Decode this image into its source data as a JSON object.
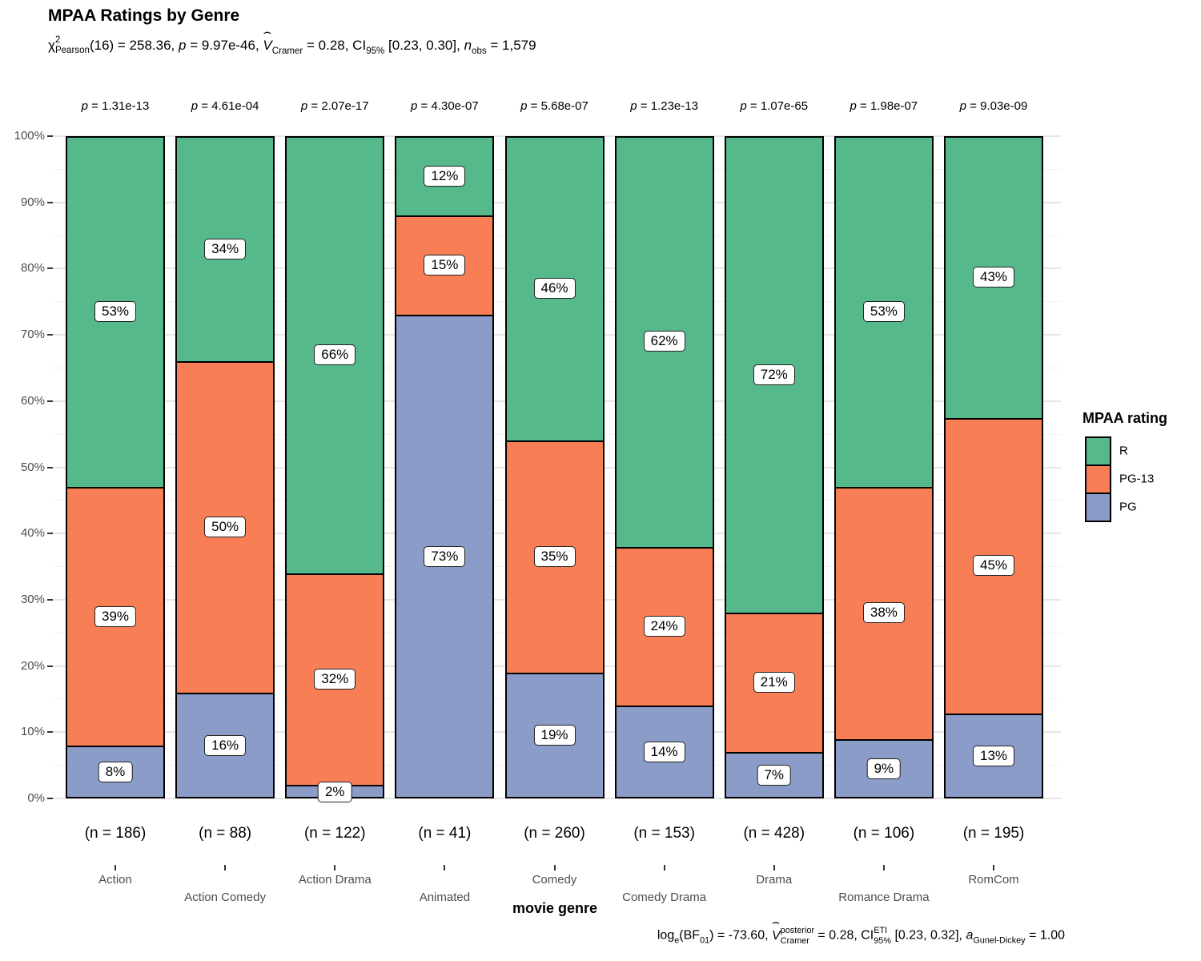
{
  "title": "MPAA Ratings by Genre",
  "subtitle_tokens": [
    {
      "type": "t",
      "text": "χ"
    },
    {
      "type": "stack",
      "over": "2",
      "under": "Pearson"
    },
    {
      "type": "t",
      "text": "(16) = 258.36, "
    },
    {
      "type": "i",
      "text": "p"
    },
    {
      "type": "t",
      "text": " = 9.97e-46, "
    },
    {
      "type": "ihat",
      "text": "V"
    },
    {
      "type": "sub",
      "text": "Cramer"
    },
    {
      "type": "t",
      "text": " = 0.28, CI"
    },
    {
      "type": "sub",
      "text": "95%"
    },
    {
      "type": "t",
      "text": " [0.23, 0.30], "
    },
    {
      "type": "i",
      "text": "n"
    },
    {
      "type": "sub",
      "text": "obs"
    },
    {
      "type": "t",
      "text": " = 1,579"
    }
  ],
  "caption_tokens": [
    {
      "type": "t",
      "text": "log"
    },
    {
      "type": "sub",
      "text": "e"
    },
    {
      "type": "t",
      "text": "(BF"
    },
    {
      "type": "sub",
      "text": "01"
    },
    {
      "type": "t",
      "text": ") = -73.60, "
    },
    {
      "type": "ihat",
      "text": "V"
    },
    {
      "type": "stack",
      "over": "posterior",
      "under": "Cramer"
    },
    {
      "type": "t",
      "text": " = 0.28, CI"
    },
    {
      "type": "stack",
      "over": "ETI",
      "under": "95%"
    },
    {
      "type": "t",
      "text": " [0.23, 0.32], "
    },
    {
      "type": "i",
      "text": "a"
    },
    {
      "type": "sub",
      "text": "Gunel-Dickey"
    },
    {
      "type": "t",
      "text": " = 1.00"
    }
  ],
  "p_label_prefix": "p",
  "p_label_eq": " = ",
  "chart_data": {
    "type": "bar",
    "stacked": true,
    "unit": "percent",
    "title": "MPAA Ratings by Genre",
    "xlabel": "movie genre",
    "ylabel": "",
    "ylim": [
      0,
      100
    ],
    "grid": true,
    "categories": [
      "Action",
      "Action Comedy",
      "Action Drama",
      "Animated",
      "Comedy",
      "Comedy Drama",
      "Drama",
      "Romance Drama",
      "RomCom"
    ],
    "n_labels": [
      "(n = 186)",
      "(n = 88)",
      "(n = 122)",
      "(n = 41)",
      "(n = 260)",
      "(n = 153)",
      "(n = 428)",
      "(n = 106)",
      "(n = 195)"
    ],
    "p_values": [
      "1.31e-13",
      "4.61e-04",
      "2.07e-17",
      "4.30e-07",
      "5.68e-07",
      "1.23e-13",
      "1.07e-65",
      "1.98e-07",
      "9.03e-09"
    ],
    "series": [
      {
        "name": "PG",
        "color": "#8B9CC8",
        "values": [
          8,
          16,
          2,
          73,
          19,
          14,
          7,
          9,
          13
        ]
      },
      {
        "name": "PG-13",
        "color": "#F87E55",
        "values": [
          39,
          50,
          32,
          15,
          35,
          24,
          21,
          38,
          45
        ]
      },
      {
        "name": "R",
        "color": "#56B98B",
        "values": [
          53,
          34,
          66,
          12,
          46,
          62,
          72,
          53,
          43
        ]
      }
    ],
    "value_suffix": "%",
    "yticks": [
      {
        "pct": 0,
        "label": "0%"
      },
      {
        "pct": 10,
        "label": "10%"
      },
      {
        "pct": 20,
        "label": "20%"
      },
      {
        "pct": 30,
        "label": "30%"
      },
      {
        "pct": 40,
        "label": "40%"
      },
      {
        "pct": 50,
        "label": "50%"
      },
      {
        "pct": 60,
        "label": "60%"
      },
      {
        "pct": 70,
        "label": "70%"
      },
      {
        "pct": 80,
        "label": "80%"
      },
      {
        "pct": 90,
        "label": "90%"
      },
      {
        "pct": 100,
        "label": "100%"
      }
    ],
    "legend": {
      "title": "MPAA rating",
      "position": "right",
      "items": [
        {
          "label": "R",
          "color": "#56B98B"
        },
        {
          "label": "PG-13",
          "color": "#F87E55"
        },
        {
          "label": "PG",
          "color": "#8B9CC8"
        }
      ]
    }
  },
  "colors": {
    "bar_border": "#000000",
    "grid_major": "#E6E6E6",
    "grid_minor": "#F2F2F2",
    "axis_text": "#4D4D4D",
    "background": "#FFFFFF"
  }
}
